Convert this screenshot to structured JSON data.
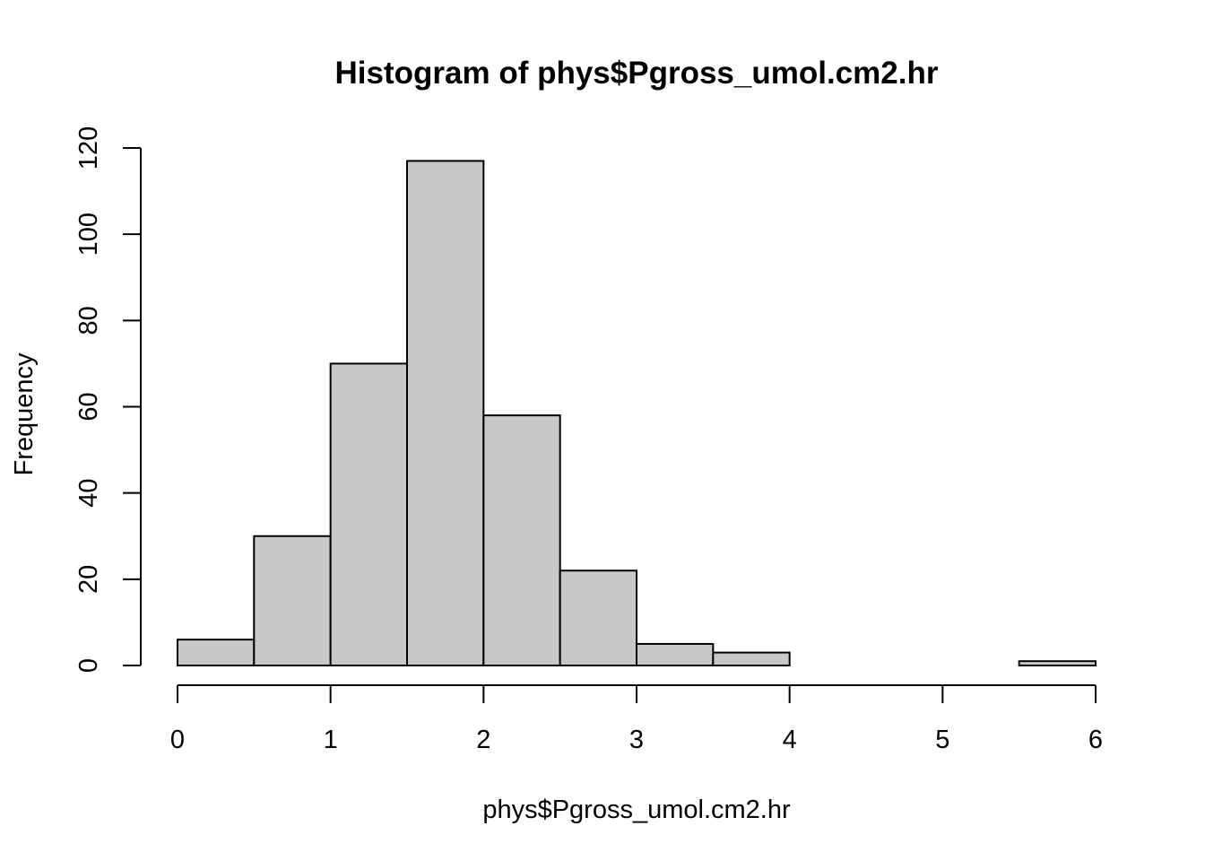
{
  "chart_data": {
    "type": "bar",
    "subtype": "histogram",
    "title": "Histogram of phys$Pgross_umol.cm2.hr",
    "xlabel": "phys$Pgross_umol.cm2.hr",
    "ylabel": "Frequency",
    "bins": [
      {
        "start": 0.0,
        "end": 0.5,
        "count": 6
      },
      {
        "start": 0.5,
        "end": 1.0,
        "count": 30
      },
      {
        "start": 1.0,
        "end": 1.5,
        "count": 70
      },
      {
        "start": 1.5,
        "end": 2.0,
        "count": 117
      },
      {
        "start": 2.0,
        "end": 2.5,
        "count": 58
      },
      {
        "start": 2.5,
        "end": 3.0,
        "count": 22
      },
      {
        "start": 3.0,
        "end": 3.5,
        "count": 5
      },
      {
        "start": 3.5,
        "end": 4.0,
        "count": 3
      },
      {
        "start": 4.0,
        "end": 4.5,
        "count": 0
      },
      {
        "start": 4.5,
        "end": 5.0,
        "count": 0
      },
      {
        "start": 5.0,
        "end": 5.5,
        "count": 0
      },
      {
        "start": 5.5,
        "end": 6.0,
        "count": 1
      }
    ],
    "xlim": [
      0,
      6
    ],
    "ylim": [
      0,
      120
    ],
    "xticks": [
      "0",
      "1",
      "2",
      "3",
      "4",
      "5",
      "6"
    ],
    "yticks": [
      "0",
      "20",
      "40",
      "60",
      "80",
      "100",
      "120"
    ],
    "grid": false,
    "bar_color": "#c8c8c8",
    "edge_color": "#000000"
  }
}
